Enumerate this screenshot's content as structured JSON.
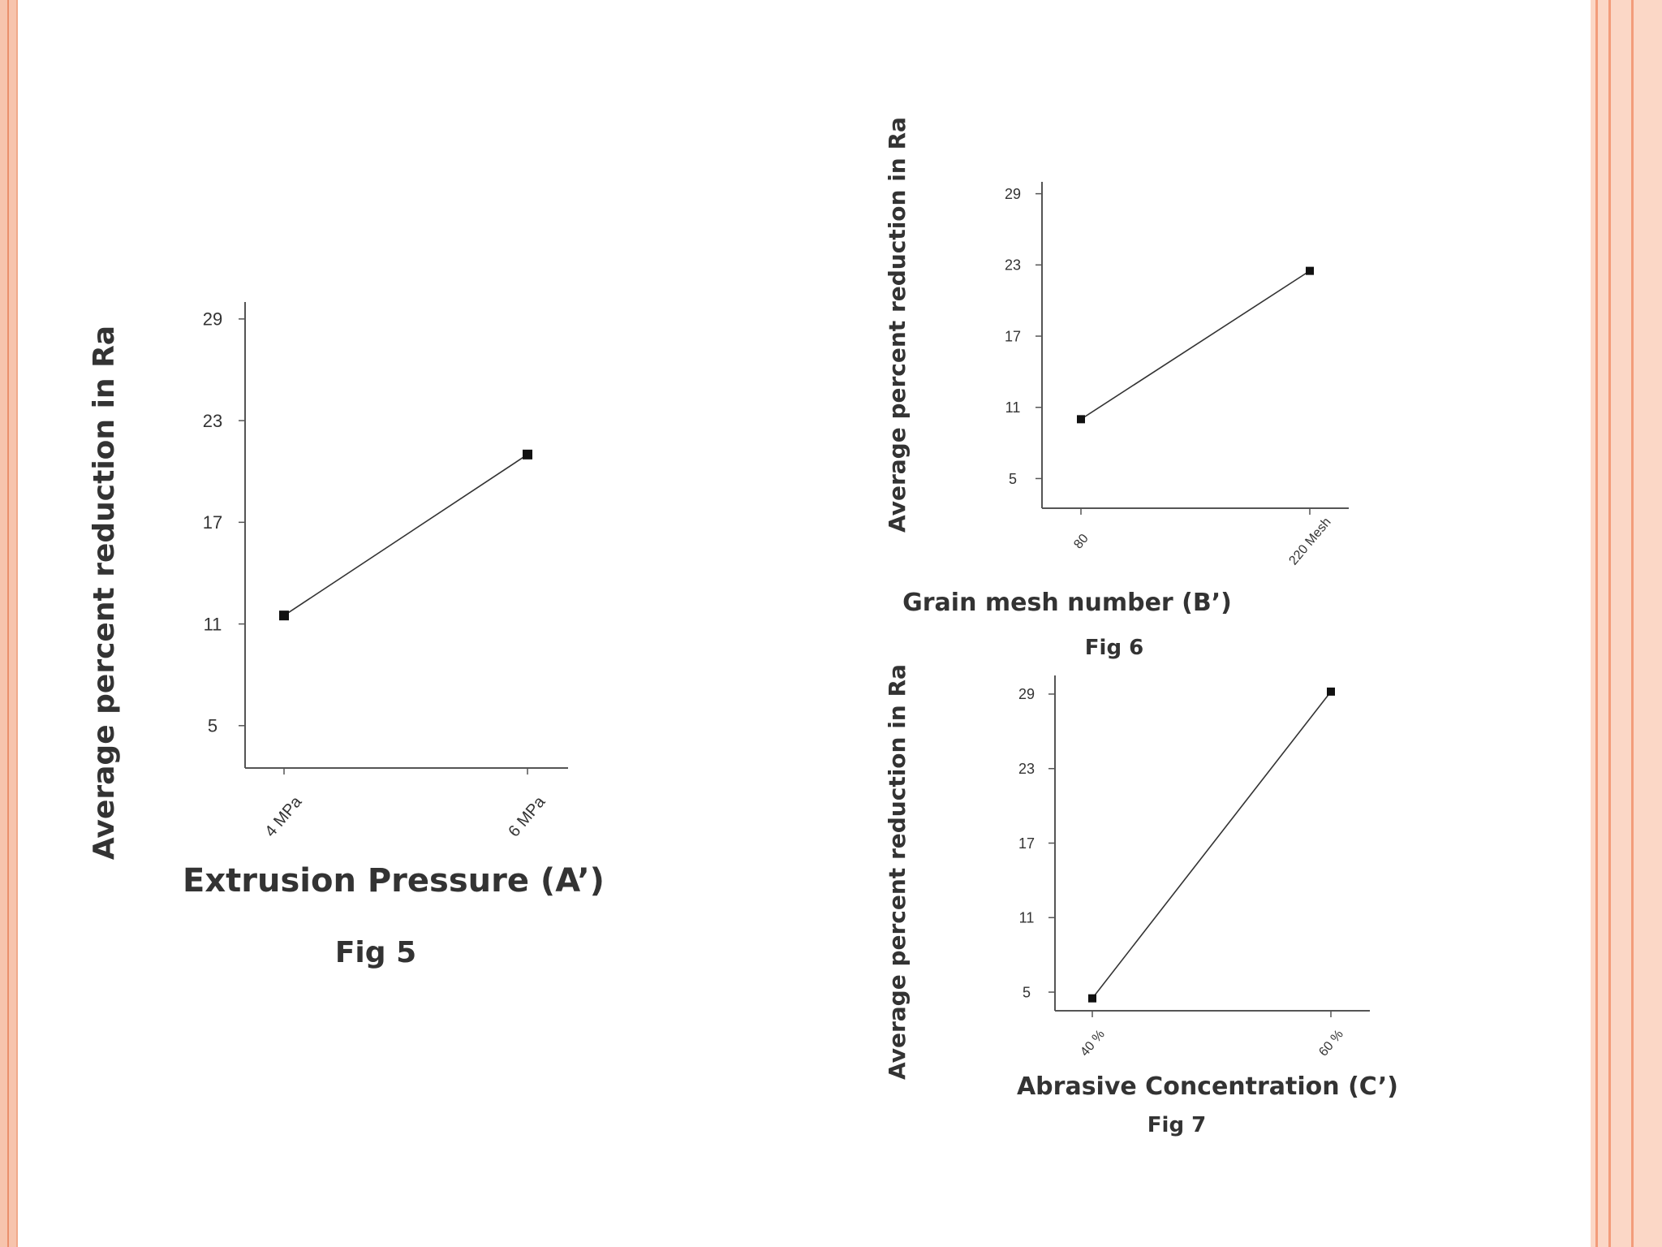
{
  "chart_data": [
    {
      "type": "line",
      "x": [
        "4 MPa",
        "6 MPa"
      ],
      "categories": [
        "4 MPa",
        "6 MPa"
      ],
      "series": [
        {
          "values": [
            11.5,
            21
          ]
        }
      ],
      "xlabel": "Extrusion Pressure (A’)",
      "ylabel": "Average percent reduction in Ra",
      "yticks": [
        "29",
        "23",
        "17",
        "11",
        "5"
      ],
      "ylim": [
        2.5,
        30
      ],
      "caption": "Fig 5",
      "grid": false
    },
    {
      "type": "line",
      "x": [
        "80",
        "220 Mesh"
      ],
      "categories": [
        "80",
        "220 Mesh"
      ],
      "series": [
        {
          "values": [
            10,
            22.5
          ]
        }
      ],
      "xlabel": "Grain mesh number (B’)",
      "ylabel": "Average percent reduction in Ra",
      "yticks": [
        "29",
        "23",
        "17",
        "11",
        "5"
      ],
      "ylim": [
        2.5,
        30
      ],
      "caption": "Fig 6",
      "grid": false
    },
    {
      "type": "line",
      "x": [
        "40 %",
        "60 %"
      ],
      "categories": [
        "40 %",
        "60 %"
      ],
      "series": [
        {
          "values": [
            4.5,
            29.2
          ]
        }
      ],
      "xlabel": "Abrasive Concentration (C’)",
      "ylabel": "Average percent reduction in Ra",
      "yticks": [
        "29",
        "23",
        "17",
        "11",
        "5"
      ],
      "ylim": [
        3.5,
        30.5
      ],
      "caption": "Fig 7",
      "grid": false
    }
  ],
  "colors": {
    "border_left": "#f7c4ad",
    "border_right": "#fbd7c6",
    "accent_stripe": "#f39c7a",
    "line": "#333333"
  }
}
